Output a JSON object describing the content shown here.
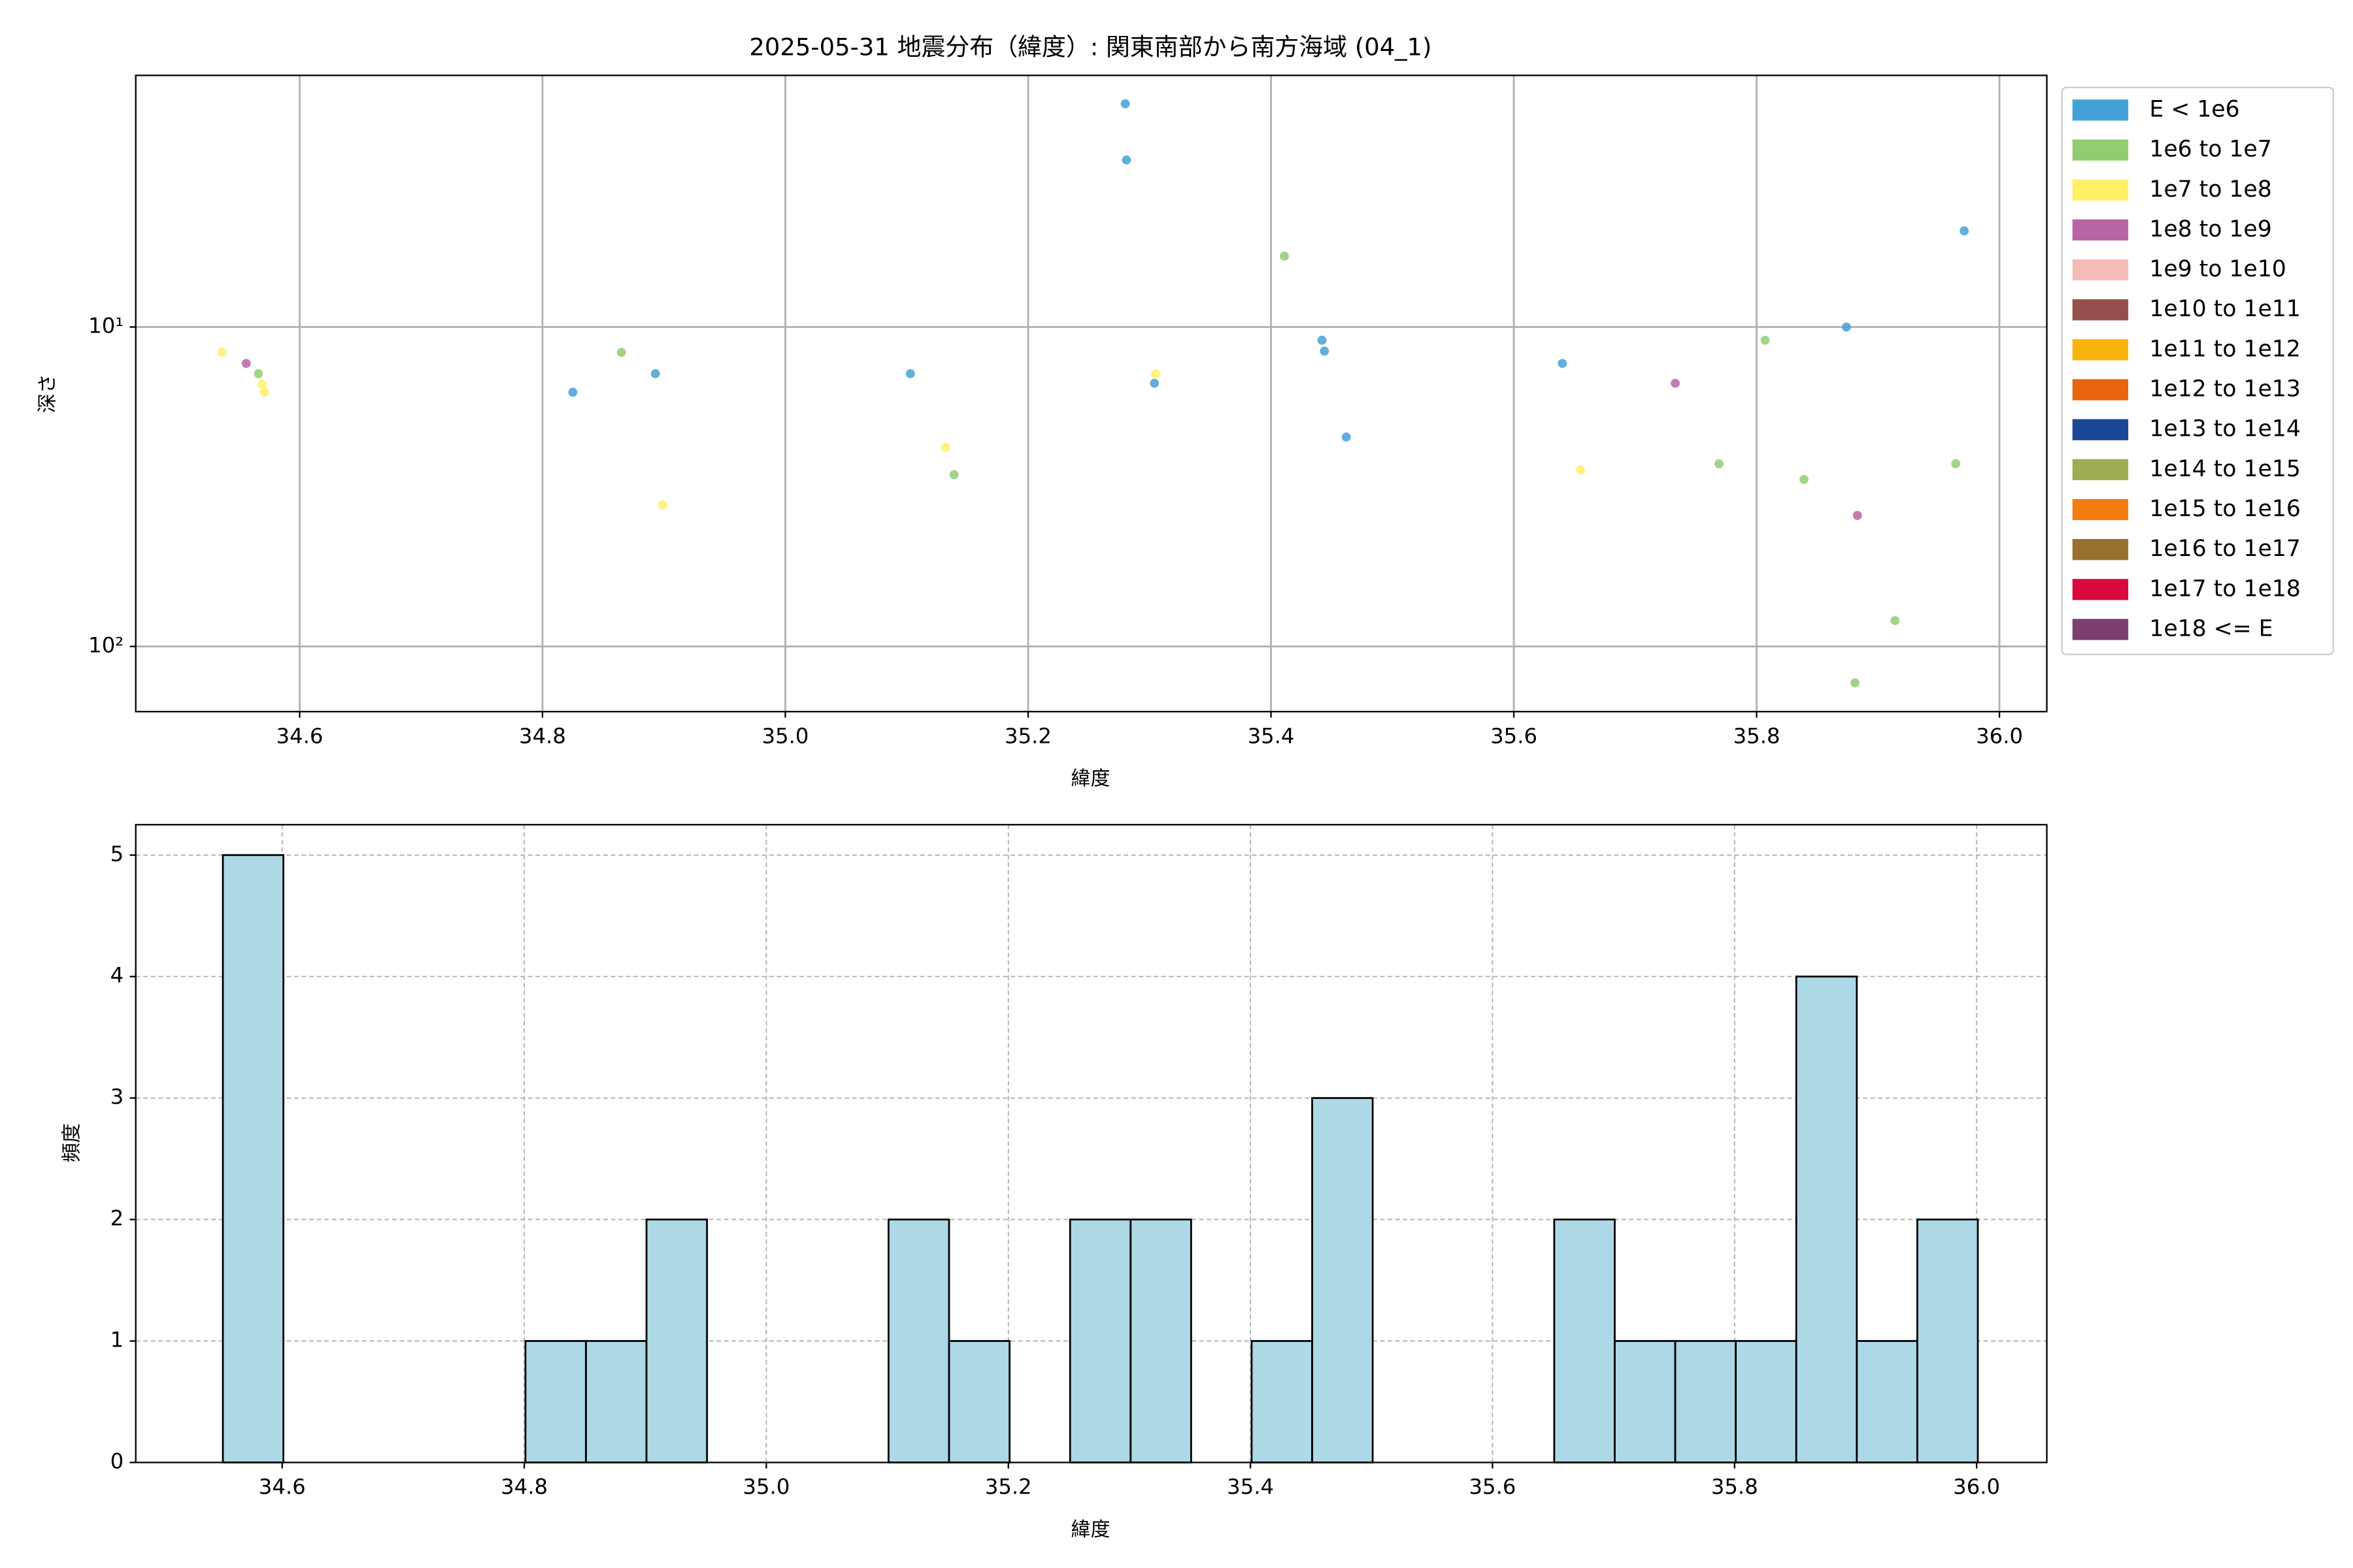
{
  "chart_data": [
    {
      "type": "scatter",
      "title": "2025-05-31 地震分布（緯度）: 関東南部から南方海域 (04_1)",
      "xlabel": "緯度",
      "ylabel": "深さ",
      "xlim": [
        34.465,
        36.039
      ],
      "xticks": [
        34.6,
        34.8,
        {
          "value": 35,
          "label": "35.0"
        },
        35.2,
        35.4,
        35.6,
        35.8,
        {
          "value": 36,
          "label": "36.0"
        }
      ],
      "ylim": [
        1.63,
        160
      ],
      "ylog": true,
      "yinvert": true,
      "yticks": [
        {
          "value": 10,
          "label": "10¹"
        },
        {
          "value": 100,
          "label": "10²"
        }
      ],
      "grid": true,
      "legend": "outside-right",
      "series": [
        {
          "name": "E < 1e6",
          "color": "#44a1d8",
          "x": [
            35.28,
            35.281,
            35.971,
            35.874,
            35.442,
            35.444,
            34.893,
            35.103,
            35.304,
            34.825,
            35.64,
            35.462
          ],
          "values": [
            2.0,
            3.0,
            5.0,
            10.0,
            11.0,
            11.9,
            14.0,
            14.0,
            15.0,
            16.0,
            13.0,
            22.1
          ]
        },
        {
          "name": "1e6 to 1e7",
          "color": "#92cc72",
          "x": [
            35.411,
            34.566,
            34.865,
            35.807,
            35.139,
            35.769,
            35.839,
            35.964,
            35.914,
            35.881
          ],
          "values": [
            6.0,
            14.0,
            12.0,
            11.0,
            29.0,
            26.8,
            30.0,
            26.8,
            83,
            130
          ]
        },
        {
          "name": "1e7 to 1e8",
          "color": "#fff066",
          "x": [
            34.536,
            34.569,
            34.571,
            35.305,
            35.132,
            34.899,
            35.655
          ],
          "values": [
            12.0,
            15.1,
            16.0,
            14.0,
            23.8,
            36,
            28
          ]
        },
        {
          "name": "1e8 to 1e9",
          "color": "#b865a6",
          "x": [
            34.556,
            35.733,
            35.883
          ],
          "values": [
            13.0,
            15.0,
            38.9
          ]
        },
        {
          "name": "1e9 to 1e10",
          "color": "#f5bcb5",
          "x": [],
          "values": []
        },
        {
          "name": "1e10 to 1e11",
          "color": "#95504b",
          "x": [],
          "values": []
        },
        {
          "name": "1e11 to 1e12",
          "color": "#f9b50b",
          "x": [],
          "values": []
        },
        {
          "name": "1e12 to 1e13",
          "color": "#e8640e",
          "x": [],
          "values": []
        },
        {
          "name": "1e13 to 1e14",
          "color": "#1b4894",
          "x": [],
          "values": []
        },
        {
          "name": "1e14 to 1e15",
          "color": "#9dae52",
          "x": [],
          "values": []
        },
        {
          "name": "1e15 to 1e16",
          "color": "#f07c12",
          "x": [],
          "values": []
        },
        {
          "name": "1e16 to 1e17",
          "color": "#98712f",
          "x": [],
          "values": []
        },
        {
          "name": "1e17 to 1e18",
          "color": "#d80a3b",
          "x": [],
          "values": []
        },
        {
          "name": "1e18 <= E",
          "color": "#7b3f6e",
          "x": [],
          "values": []
        }
      ]
    },
    {
      "type": "histogram",
      "xlabel": "緯度",
      "ylabel": "頻度",
      "color": "#add8e6",
      "xlim": [
        34.479,
        36.058
      ],
      "xticks": [
        34.6,
        34.8,
        {
          "value": 35,
          "label": "35.0"
        },
        35.2,
        35.4,
        35.6,
        35.8,
        {
          "value": 36,
          "label": "36.0"
        }
      ],
      "ylim": [
        0,
        5.25
      ],
      "yticks": [
        0,
        1,
        2,
        3,
        4,
        5
      ],
      "grid": true,
      "bins": [
        34.551,
        34.601,
        34.651,
        34.701,
        34.751,
        34.801,
        34.851,
        34.901,
        34.951,
        35.001,
        35.051,
        35.101,
        35.151,
        35.201,
        35.251,
        35.301,
        35.351,
        35.401,
        35.451,
        35.501,
        35.551,
        35.601,
        35.651,
        35.701,
        35.751,
        35.801,
        35.851,
        35.901,
        35.951,
        36.001
      ],
      "values": [
        5,
        0,
        0,
        0,
        0,
        1,
        1,
        2,
        0,
        0,
        0,
        2,
        1,
        0,
        2,
        2,
        0,
        1,
        3,
        0,
        0,
        0,
        2,
        1,
        1,
        1,
        4,
        1,
        2
      ]
    }
  ]
}
